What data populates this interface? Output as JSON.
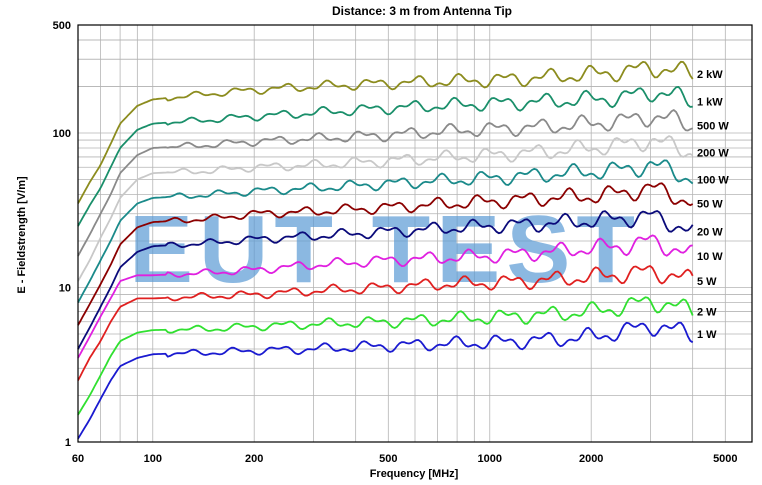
{
  "chart_data": {
    "type": "line",
    "title": "Distance: 3 m from Antenna Tip",
    "xlabel": "Frequency [MHz]",
    "ylabel": "E - Fieldstrength [V/m]",
    "x_scale": "log",
    "y_scale": "log",
    "xlim": [
      60,
      6000
    ],
    "ylim": [
      1,
      500
    ],
    "x_ticks": [
      60,
      100,
      200,
      500,
      1000,
      2000,
      5000
    ],
    "x_tick_labels": [
      "60",
      "100",
      "200",
      "500",
      "1000",
      "2000",
      "5000"
    ],
    "y_ticks": [
      1,
      10,
      100,
      500
    ],
    "y_tick_labels": [
      "1",
      "10",
      "100",
      "500"
    ],
    "grid": true,
    "legend": "series labels at right end of each line",
    "watermark": "EUT TEST",
    "x": [
      60,
      65,
      70,
      75,
      80,
      90,
      100,
      150,
      200,
      300,
      500,
      700,
      1000,
      1500,
      2000,
      2500,
      3000,
      3500,
      4000
    ],
    "series": [
      {
        "name": "2 kW",
        "color": "#8c8c1e",
        "values": [
          35,
          48,
          62,
          85,
          115,
          150,
          165,
          180,
          190,
          200,
          210,
          215,
          220,
          230,
          240,
          250,
          265,
          255,
          240
        ]
      },
      {
        "name": "1 kW",
        "color": "#1a8f6a",
        "values": [
          25,
          34,
          44,
          60,
          80,
          105,
          115,
          122,
          128,
          135,
          145,
          150,
          155,
          160,
          165,
          170,
          185,
          175,
          160
        ]
      },
      {
        "name": "500 W",
        "color": "#8a8a8a",
        "values": [
          16,
          22,
          30,
          40,
          55,
          72,
          80,
          84,
          88,
          92,
          97,
          102,
          106,
          110,
          115,
          120,
          128,
          122,
          112
        ]
      },
      {
        "name": "200 W",
        "color": "#c8c8c8",
        "values": [
          11,
          15,
          21,
          28,
          38,
          50,
          55,
          57,
          60,
          62,
          66,
          69,
          72,
          76,
          80,
          84,
          90,
          82,
          75
        ]
      },
      {
        "name": "100 W",
        "color": "#1a8a8a",
        "values": [
          8,
          11,
          15,
          20,
          27,
          35,
          38,
          40,
          42,
          44,
          47,
          49,
          51,
          54,
          56,
          58,
          62,
          57,
          50
        ]
      },
      {
        "name": "50 W",
        "color": "#8b0000",
        "values": [
          5.7,
          7.8,
          10.5,
          14,
          19,
          24.5,
          26.5,
          28,
          30,
          31,
          33,
          34.5,
          36,
          38,
          39,
          41,
          44,
          40,
          35
        ]
      },
      {
        "name": "20 W",
        "color": "#0a0a7a",
        "values": [
          4,
          5.5,
          7.5,
          10,
          13.5,
          17,
          18.5,
          19.5,
          20.5,
          21.5,
          23,
          24,
          25,
          26,
          27,
          28,
          29,
          26,
          23
        ]
      },
      {
        "name": "10 W",
        "color": "#e020e0",
        "values": [
          3.5,
          4.8,
          6.5,
          8.5,
          11,
          12,
          12,
          12.5,
          13,
          14,
          15,
          15.5,
          16,
          17,
          18,
          18.5,
          20,
          18,
          16
        ]
      },
      {
        "name": "5 W",
        "color": "#e02020",
        "values": [
          2.5,
          3.5,
          4.5,
          6,
          7.5,
          8.5,
          8.5,
          8.8,
          9,
          9.5,
          10,
          10.5,
          10.7,
          11.2,
          11.7,
          12.2,
          12.7,
          12,
          11
        ]
      },
      {
        "name": "2 W",
        "color": "#30e030",
        "values": [
          1.5,
          2,
          2.7,
          3.6,
          4.5,
          5.1,
          5.3,
          5.4,
          5.6,
          5.8,
          6,
          6.2,
          6.4,
          6.7,
          7,
          7.5,
          8.2,
          7.6,
          7
        ]
      },
      {
        "name": "1 W",
        "color": "#1a1ad0",
        "values": [
          1.05,
          1.4,
          1.9,
          2.5,
          3.1,
          3.5,
          3.7,
          3.8,
          3.9,
          4,
          4.2,
          4.3,
          4.4,
          4.6,
          4.8,
          5.2,
          5.7,
          5.3,
          5
        ]
      }
    ]
  }
}
